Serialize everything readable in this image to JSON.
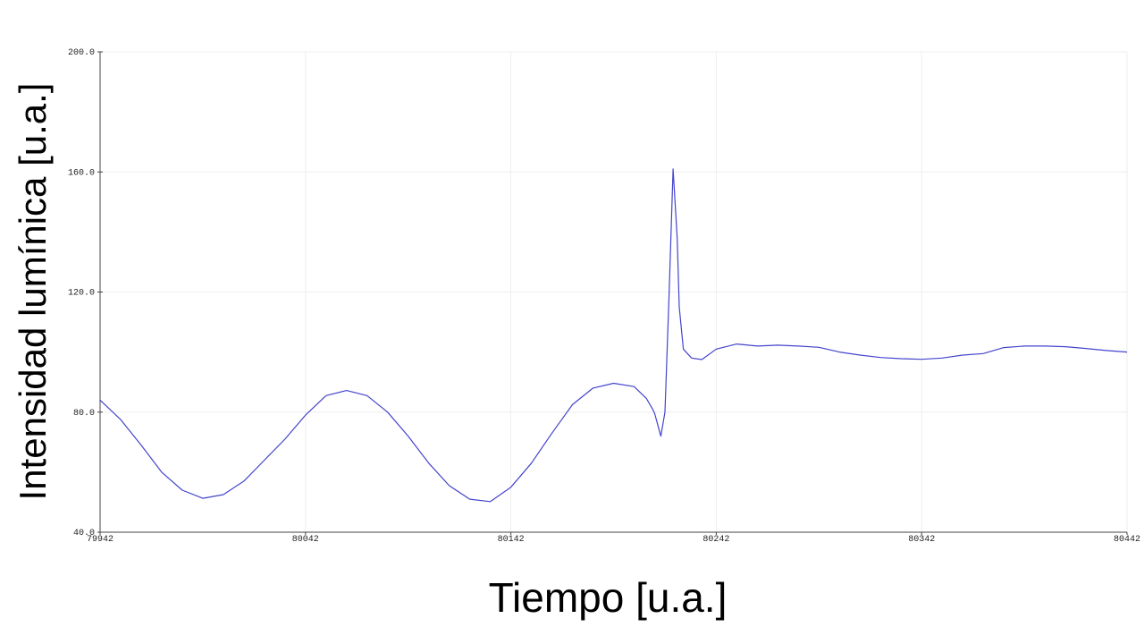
{
  "chart_data": {
    "type": "line",
    "title": "",
    "xlabel": "Tiempo [u.a.]",
    "ylabel": "Intensidad lumínica [u.a.]",
    "xlim": [
      79942,
      80442
    ],
    "ylim": [
      40,
      200
    ],
    "x_ticks": [
      79942,
      80042,
      80142,
      80242,
      80342,
      80442
    ],
    "y_ticks": [
      40.0,
      80.0,
      120.0,
      160.0,
      200.0
    ],
    "x_tick_labels": [
      "79942",
      "80042",
      "80142",
      "80242",
      "80342",
      "80442"
    ],
    "y_tick_labels": [
      "40.0",
      "80.0",
      "120.0",
      "160.0",
      "200.0"
    ],
    "grid": true,
    "color": "#4444cc",
    "series": [
      {
        "x": [
          79942,
          79952,
          79962,
          79972,
          79982,
          79992,
          80002,
          80012,
          80022,
          80032,
          80042,
          80052,
          80062,
          80072,
          80082,
          80092,
          80102,
          80112,
          80122,
          80132,
          80142,
          80152,
          80162,
          80172,
          80182,
          80192,
          80202,
          80208,
          80211,
          80212,
          80214,
          80215,
          80217,
          80219,
          80221,
          80223,
          80224,
          80226,
          80230,
          80235,
          80242,
          80252,
          80262,
          80272,
          80282,
          80292,
          80302,
          80312,
          80322,
          80332,
          80342,
          80352,
          80362,
          80372,
          80382,
          80392,
          80402,
          80412,
          80422,
          80432,
          80442
        ],
        "y": [
          84,
          77.5,
          69,
          60,
          54,
          51.3,
          52.5,
          57,
          64,
          71,
          79,
          85.5,
          87.2,
          85.5,
          80,
          72,
          63,
          55.5,
          51,
          50.2,
          55,
          63,
          73,
          82.5,
          88,
          89.6,
          88.5,
          84.5,
          81,
          79.5,
          74.5,
          72,
          80,
          118,
          161,
          138,
          115,
          101,
          98,
          97.5,
          101,
          102.7,
          102,
          102.3,
          102,
          101.6,
          100,
          99,
          98.2,
          97.8,
          97.6,
          98,
          99,
          99.5,
          101.5,
          102,
          102,
          101.8,
          101.2,
          100.5,
          100
        ]
      }
    ]
  }
}
